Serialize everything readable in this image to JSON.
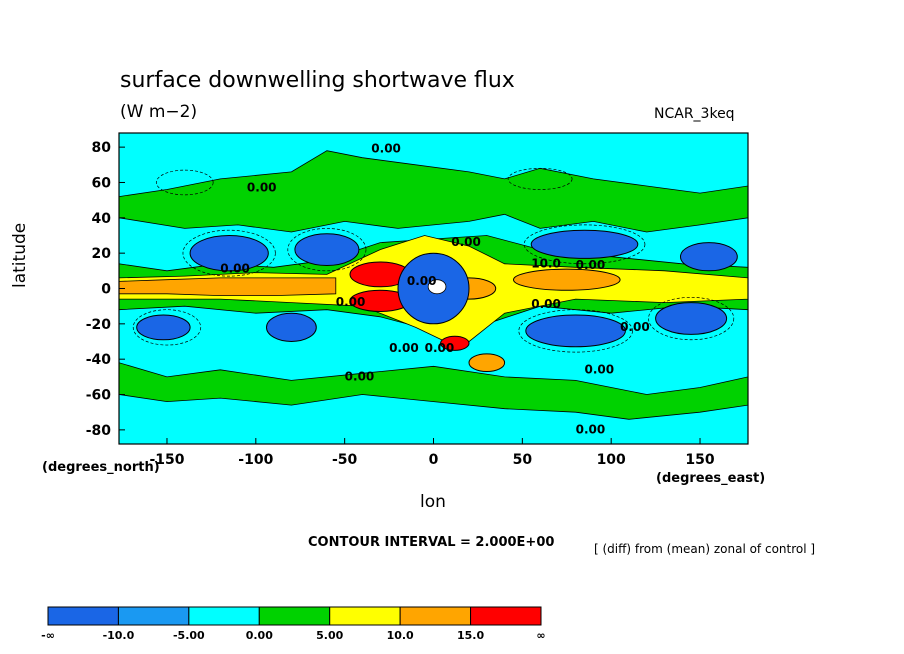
{
  "chart_data": {
    "type": "heatmap",
    "title": "surface downwelling shortwave flux",
    "units": "(W m−2)",
    "model": "NCAR_3keq",
    "xlabel": "lon",
    "xlabel_units": "(degrees_east)",
    "ylabel": "latitude",
    "ylabel_units": "(degrees_north)",
    "xlim": [
      -177,
      177
    ],
    "ylim": [
      -88,
      88
    ],
    "x_ticks": [
      -150,
      -100,
      -50,
      0,
      50,
      100,
      150
    ],
    "y_ticks": [
      80,
      60,
      40,
      20,
      0,
      -20,
      -40,
      -60,
      -80
    ],
    "contour_interval_text": "CONTOUR INTERVAL = 2.000E+00",
    "note": "[ (diff) from (mean) zonal of control ]",
    "contour_labels": [
      "0.00",
      "0.00",
      "0.00",
      "0.00",
      "0.00",
      "0.00",
      "0.00",
      "0.00",
      "0.00",
      "10.0",
      "0.00",
      "0.00",
      "0.00",
      "0.00",
      "0.00"
    ],
    "colorbar": {
      "labels": [
        "-∞",
        "-10.0",
        "-5.00",
        "0.00",
        "5.00",
        "10.0",
        "15.0",
        "∞"
      ],
      "colors": [
        "#1a66e6",
        "#1a99f2",
        "#00ffff",
        "#00d200",
        "#ffff00",
        "#ffa500",
        "#ff0000"
      ]
    },
    "regions": [
      {
        "lon": -30,
        "lat": 8,
        "rx": 17,
        "ry": 7,
        "level": 6
      },
      {
        "lon": -30,
        "lat": -7,
        "rx": 17,
        "ry": 6,
        "level": 6
      },
      {
        "lon": 75,
        "lat": 5,
        "rx": 30,
        "ry": 6,
        "level": 5
      },
      {
        "lon": 20,
        "lat": 0,
        "rx": 15,
        "ry": 6,
        "level": 5
      },
      {
        "lon": 12,
        "lat": -31,
        "rx": 8,
        "ry": 4,
        "level": 6
      },
      {
        "lon": 30,
        "lat": -42,
        "rx": 10,
        "ry": 5,
        "level": 5
      },
      {
        "lon": 0,
        "lat": 0,
        "rx": 20,
        "ry": 20,
        "level": 0
      },
      {
        "lon": -115,
        "lat": 20,
        "rx": 22,
        "ry": 10,
        "level": 0
      },
      {
        "lon": -60,
        "lat": 22,
        "rx": 18,
        "ry": 9,
        "level": 0
      },
      {
        "lon": 85,
        "lat": 25,
        "rx": 30,
        "ry": 8,
        "level": 0
      },
      {
        "lon": 155,
        "lat": 18,
        "rx": 16,
        "ry": 8,
        "level": 0
      },
      {
        "lon": 80,
        "lat": -24,
        "rx": 28,
        "ry": 9,
        "level": 0
      },
      {
        "lon": 145,
        "lat": -17,
        "rx": 20,
        "ry": 9,
        "level": 0
      },
      {
        "lon": -80,
        "lat": -22,
        "rx": 14,
        "ry": 8,
        "level": 0
      },
      {
        "lon": -152,
        "lat": -22,
        "rx": 15,
        "ry": 7,
        "level": 0
      }
    ]
  }
}
